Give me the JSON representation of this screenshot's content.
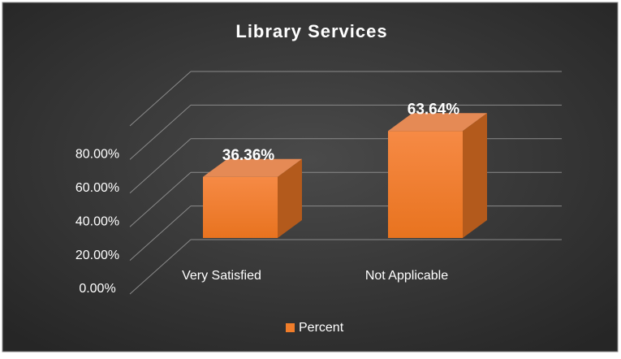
{
  "chart_data": {
    "type": "bar3d",
    "title": "Library Services",
    "categories": [
      "Very Satisfied",
      "Not Applicable"
    ],
    "series": [
      {
        "name": "Percent",
        "color": "#f07d2a",
        "values": [
          36.36,
          63.64
        ],
        "value_labels": [
          "36.36%",
          "63.64%"
        ]
      }
    ],
    "ylim": [
      0,
      100
    ],
    "yticks": [
      {
        "value": 0,
        "label": "0.00%"
      },
      {
        "value": 20,
        "label": "20.00%"
      },
      {
        "value": 40,
        "label": "40.00%"
      },
      {
        "value": 60,
        "label": "60.00%"
      },
      {
        "value": 80,
        "label": "80.00%"
      }
    ],
    "grid": true,
    "legend": "bottom"
  }
}
